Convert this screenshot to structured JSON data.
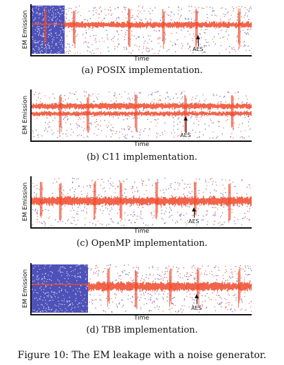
{
  "panels": [
    {
      "ylabel": "EM Emission",
      "xlabel": "Time",
      "annotation": "AES",
      "caption": "(a) POSIX implementation."
    },
    {
      "ylabel": "EM Emission",
      "xlabel": "Time",
      "annotation": "AES",
      "caption": "(b) C11 implementation."
    },
    {
      "ylabel": "EM Emission",
      "xlabel": "Time",
      "annotation": "AES",
      "caption": "(c) OpenMP implementation."
    },
    {
      "ylabel": "EM Emission",
      "xlabel": "Time",
      "annotation": "AES",
      "caption": "(d) TBB implementation."
    }
  ],
  "figure_caption": "Figure 10: The EM leakage with a noise generator.",
  "colors": {
    "noise_blue": "#3b3fb0",
    "leakage_red": "#f04a2c",
    "axis": "#111111"
  }
}
